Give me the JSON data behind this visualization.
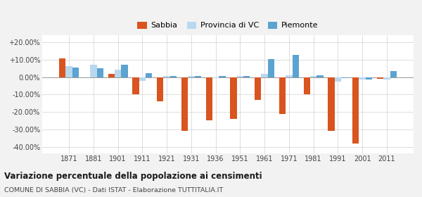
{
  "years": [
    1871,
    1881,
    1901,
    1911,
    1921,
    1931,
    1936,
    1951,
    1961,
    1971,
    1981,
    1991,
    2001,
    2011
  ],
  "sabbia": [
    11.0,
    0.0,
    2.0,
    -10.0,
    -14.0,
    -31.0,
    -25.0,
    -24.0,
    -13.0,
    -21.0,
    -10.0,
    -31.0,
    -38.0,
    -1.0
  ],
  "provincia_vc": [
    6.5,
    7.0,
    4.5,
    -2.0,
    0.5,
    0.5,
    -0.5,
    0.5,
    2.0,
    1.0,
    0.5,
    -2.5,
    -1.5,
    -1.5
  ],
  "piemonte": [
    5.5,
    5.0,
    7.0,
    2.5,
    0.5,
    0.5,
    0.5,
    0.5,
    10.5,
    13.0,
    1.0,
    -0.5,
    -1.5,
    3.5
  ],
  "color_sabbia": "#d9541e",
  "color_provincia": "#b8d8f0",
  "color_piemonte": "#5ba3d0",
  "title": "Variazione percentuale della popolazione ai censimenti",
  "subtitle": "COMUNE DI SABBIA (VC) - Dati ISTAT - Elaborazione TUTTITALIA.IT",
  "ylim": [
    -44,
    24
  ],
  "yticks": [
    -40,
    -30,
    -20,
    -10,
    0,
    10,
    20
  ],
  "ytick_labels": [
    "-40.00%",
    "-30.00%",
    "-20.00%",
    "-10.00%",
    "0.00%",
    "+10.00%",
    "+20.00%"
  ],
  "bg_color": "#f2f2f2",
  "plot_bg_color": "#ffffff",
  "bar_width": 0.27
}
